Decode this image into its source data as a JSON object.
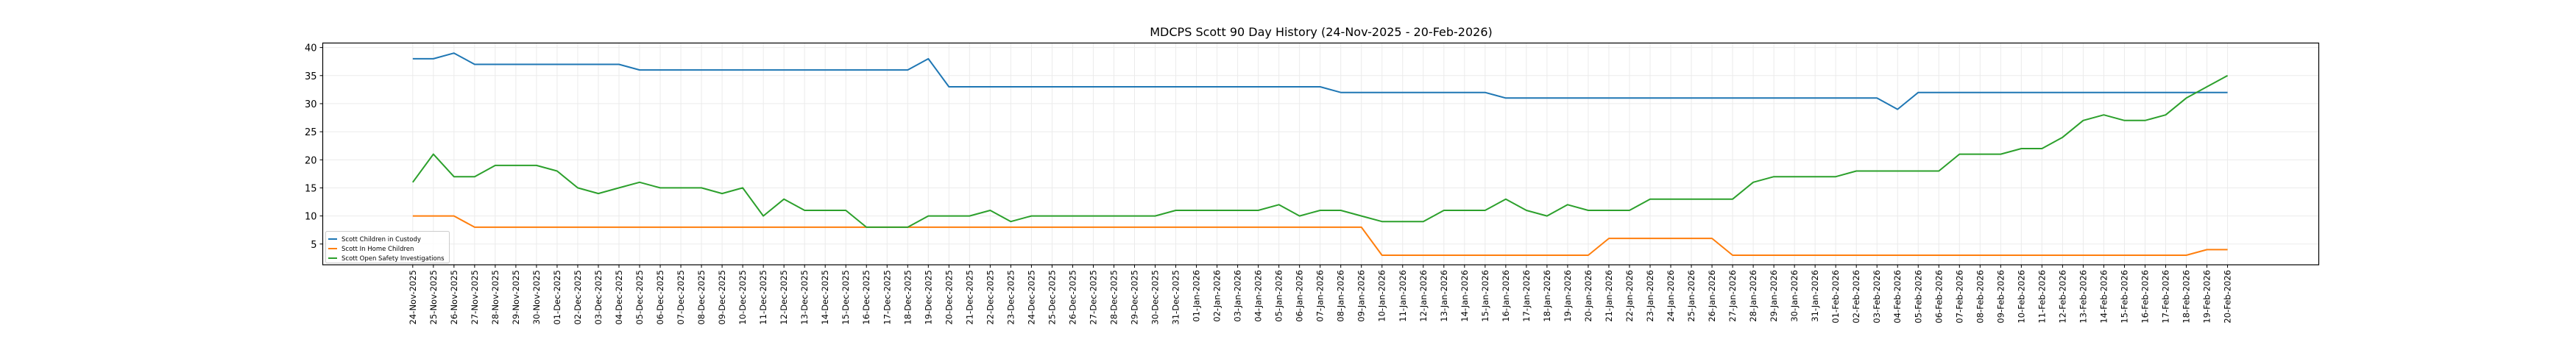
{
  "chart_data": {
    "type": "line",
    "title": "MDCPS Scott 90 Day History (24-Nov-2025 - 20-Feb-2026)",
    "xlabel": "",
    "ylabel": "",
    "ylim": [
      1.3,
      40.8
    ],
    "yticks": [
      5,
      10,
      15,
      20,
      25,
      30,
      35,
      40
    ],
    "grid": true,
    "legend_position": "lower-left",
    "x": [
      "24-Nov-2025",
      "25-Nov-2025",
      "26-Nov-2025",
      "27-Nov-2025",
      "28-Nov-2025",
      "29-Nov-2025",
      "30-Nov-2025",
      "01-Dec-2025",
      "02-Dec-2025",
      "03-Dec-2025",
      "04-Dec-2025",
      "05-Dec-2025",
      "06-Dec-2025",
      "07-Dec-2025",
      "08-Dec-2025",
      "09-Dec-2025",
      "10-Dec-2025",
      "11-Dec-2025",
      "12-Dec-2025",
      "13-Dec-2025",
      "14-Dec-2025",
      "15-Dec-2025",
      "16-Dec-2025",
      "17-Dec-2025",
      "18-Dec-2025",
      "19-Dec-2025",
      "20-Dec-2025",
      "21-Dec-2025",
      "22-Dec-2025",
      "23-Dec-2025",
      "24-Dec-2025",
      "25-Dec-2025",
      "26-Dec-2025",
      "27-Dec-2025",
      "28-Dec-2025",
      "29-Dec-2025",
      "30-Dec-2025",
      "31-Dec-2025",
      "01-Jan-2026",
      "02-Jan-2026",
      "03-Jan-2026",
      "04-Jan-2026",
      "05-Jan-2026",
      "06-Jan-2026",
      "07-Jan-2026",
      "08-Jan-2026",
      "09-Jan-2026",
      "10-Jan-2026",
      "11-Jan-2026",
      "12-Jan-2026",
      "13-Jan-2026",
      "14-Jan-2026",
      "15-Jan-2026",
      "16-Jan-2026",
      "17-Jan-2026",
      "18-Jan-2026",
      "19-Jan-2026",
      "20-Jan-2026",
      "21-Jan-2026",
      "22-Jan-2026",
      "23-Jan-2026",
      "24-Jan-2026",
      "25-Jan-2026",
      "26-Jan-2026",
      "27-Jan-2026",
      "28-Jan-2026",
      "29-Jan-2026",
      "30-Jan-2026",
      "31-Jan-2026",
      "01-Feb-2026",
      "02-Feb-2026",
      "03-Feb-2026",
      "04-Feb-2026",
      "05-Feb-2026",
      "06-Feb-2026",
      "07-Feb-2026",
      "08-Feb-2026",
      "09-Feb-2026",
      "10-Feb-2026",
      "11-Feb-2026",
      "12-Feb-2026",
      "13-Feb-2026",
      "14-Feb-2026",
      "15-Feb-2026",
      "16-Feb-2026",
      "17-Feb-2026",
      "18-Feb-2026",
      "19-Feb-2026",
      "20-Feb-2026"
    ],
    "series": [
      {
        "name": "Scott Children in Custody",
        "color": "#1f77b4",
        "values": [
          38,
          38,
          39,
          37,
          37,
          37,
          37,
          37,
          37,
          37,
          37,
          36,
          36,
          36,
          36,
          36,
          36,
          36,
          36,
          36,
          36,
          36,
          36,
          36,
          36,
          38,
          33,
          33,
          33,
          33,
          33,
          33,
          33,
          33,
          33,
          33,
          33,
          33,
          33,
          33,
          33,
          33,
          33,
          33,
          33,
          32,
          32,
          32,
          32,
          32,
          32,
          32,
          32,
          31,
          31,
          31,
          31,
          31,
          31,
          31,
          31,
          31,
          31,
          31,
          31,
          31,
          31,
          31,
          31,
          31,
          31,
          31,
          29,
          32,
          32,
          32,
          32,
          32,
          32,
          32,
          32,
          32,
          32,
          32,
          32,
          32,
          32,
          32,
          32
        ]
      },
      {
        "name": "Scott In Home Children",
        "color": "#ff7f0e",
        "values": [
          10,
          10,
          10,
          8,
          8,
          8,
          8,
          8,
          8,
          8,
          8,
          8,
          8,
          8,
          8,
          8,
          8,
          8,
          8,
          8,
          8,
          8,
          8,
          8,
          8,
          8,
          8,
          8,
          8,
          8,
          8,
          8,
          8,
          8,
          8,
          8,
          8,
          8,
          8,
          8,
          8,
          8,
          8,
          8,
          8,
          8,
          8,
          3,
          3,
          3,
          3,
          3,
          3,
          3,
          3,
          3,
          3,
          3,
          6,
          6,
          6,
          6,
          6,
          6,
          3,
          3,
          3,
          3,
          3,
          3,
          3,
          3,
          3,
          3,
          3,
          3,
          3,
          3,
          3,
          3,
          3,
          3,
          3,
          3,
          3,
          3,
          3,
          4,
          4
        ]
      },
      {
        "name": "Scott Open Safety Investigations",
        "color": "#2ca02c",
        "values": [
          16,
          21,
          17,
          17,
          19,
          19,
          19,
          18,
          15,
          14,
          15,
          16,
          15,
          15,
          15,
          14,
          15,
          10,
          13,
          11,
          11,
          11,
          8,
          8,
          8,
          10,
          10,
          10,
          11,
          9,
          10,
          10,
          10,
          10,
          10,
          10,
          10,
          11,
          11,
          11,
          11,
          11,
          12,
          10,
          11,
          11,
          10,
          9,
          9,
          9,
          11,
          11,
          11,
          13,
          11,
          10,
          12,
          11,
          11,
          11,
          13,
          13,
          13,
          13,
          13,
          16,
          17,
          17,
          17,
          17,
          18,
          18,
          18,
          18,
          18,
          21,
          21,
          21,
          22,
          22,
          24,
          27,
          28,
          27,
          27,
          28,
          31,
          33,
          35
        ]
      }
    ]
  }
}
